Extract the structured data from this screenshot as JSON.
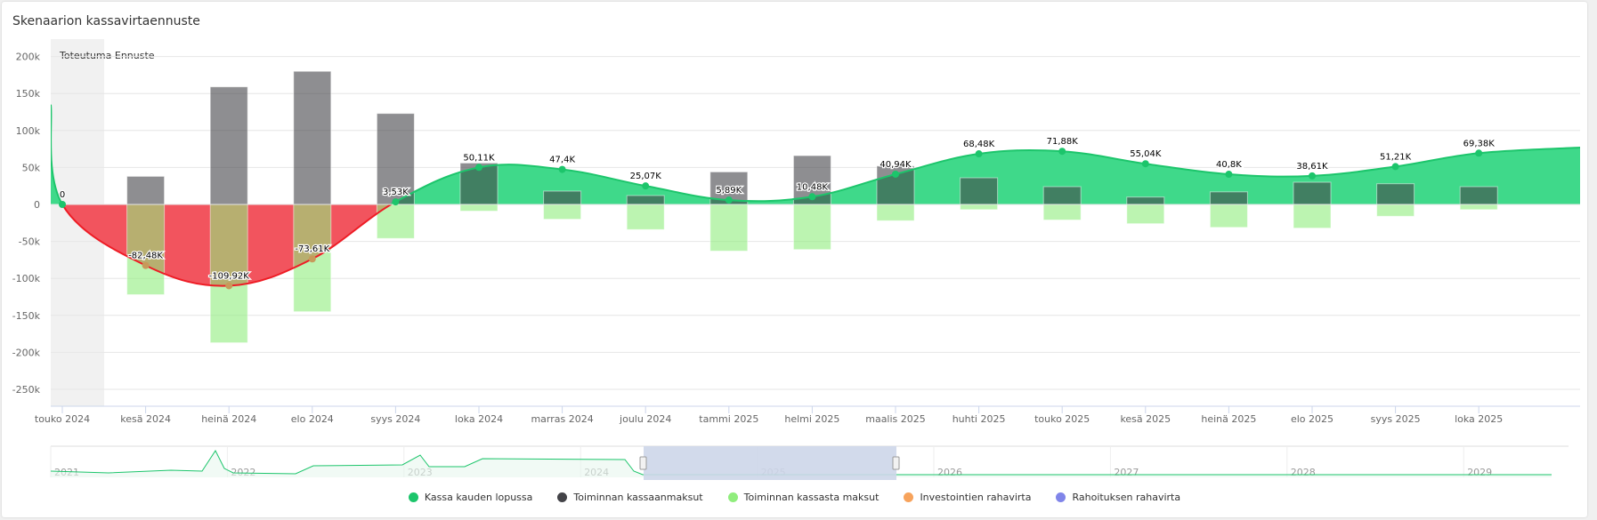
{
  "title": "Skenaarion kassavirtaennuste",
  "colors": {
    "cash": "#1cc56b",
    "cash_fill": "#3fd98a",
    "negative_fill": "#f2545e",
    "negative_line": "#ee1c25",
    "inflow": "#8a8a8b",
    "outflow": "#bcf4ad",
    "investing": "#f4a35c",
    "financing": "#7f7fe8",
    "actual_band": "#f1f1f1",
    "navigator_mask": "#cdd6e9"
  },
  "chart_data": {
    "type": "bar+area",
    "title": "Skenaarion kassavirtaennuste",
    "xlabel": "",
    "ylabel": "",
    "ylim": [
      -275000,
      215000
    ],
    "yticks": [
      200000,
      150000,
      100000,
      50000,
      0,
      -50000,
      -100000,
      -150000,
      -200000,
      -250000
    ],
    "ytick_labels": [
      "200k",
      "150k",
      "100k",
      "50k",
      "0",
      "-50k",
      "-100k",
      "-150k",
      "-200k",
      "-250k"
    ],
    "grid": true,
    "legend_position": "bottom",
    "band_labels": [
      "Toteutuma",
      "Ennuste"
    ],
    "categories": [
      "touko 2024",
      "kesä 2024",
      "heinä 2024",
      "elo 2024",
      "syys 2024",
      "loka 2024",
      "marras 2024",
      "joulu 2024",
      "tammi 2025",
      "helmi 2025",
      "maalis 2025",
      "huhti 2025",
      "touko 2025",
      "kesä 2025",
      "heinä 2025",
      "elo 2025",
      "syys 2025",
      "loka 2025"
    ],
    "series": [
      {
        "name": "Kassa kauden lopussa",
        "type": "area",
        "values": [
          0,
          -82480,
          -109920,
          -73610,
          3530,
          50110,
          47400,
          25070,
          5890,
          10480,
          40940,
          68480,
          71880,
          55040,
          40800,
          38610,
          51210,
          69380
        ],
        "labels": [
          "0",
          "-82,48K",
          "-109,92K",
          "-73,61K",
          "3,53K",
          "50,11K",
          "47,4K",
          "25,07K",
          "5,89K",
          "10,48K",
          "40,94K",
          "68,48K",
          "71,88K",
          "55,04K",
          "40,8K",
          "38,61K",
          "51,21K",
          "69,38K"
        ],
        "start_value": 135000,
        "end_value": 77000
      },
      {
        "name": "Toiminnan kassaanmaksut",
        "type": "bar",
        "values": [
          0,
          38000,
          159000,
          180000,
          123000,
          56000,
          18000,
          12000,
          44000,
          66000,
          52000,
          36000,
          24000,
          10000,
          17000,
          30000,
          28000,
          24000
        ]
      },
      {
        "name": "Toiminnan kassasta maksut",
        "type": "bar",
        "values": [
          0,
          -122000,
          -187000,
          -145000,
          -46000,
          -9000,
          -20000,
          -34000,
          -63000,
          -61000,
          -22000,
          -7000,
          -21000,
          -26000,
          -31000,
          -32000,
          -16000,
          -7000
        ]
      },
      {
        "name": "Investointien rahavirta",
        "type": "bar",
        "values": []
      },
      {
        "name": "Rahoituksen rahavirta",
        "type": "bar",
        "values": []
      }
    ]
  },
  "navigator": {
    "year_labels": [
      "2021",
      "2022",
      "2023",
      "2024",
      "2025",
      "2026",
      "2027",
      "2028",
      "2029"
    ],
    "selection": {
      "from": "touko 2024",
      "to": "loka 2025"
    }
  },
  "legend": [
    {
      "label": "Kassa kauden lopussa",
      "color": "#1cc56b"
    },
    {
      "label": "Toiminnan kassaanmaksut",
      "color": "#434348"
    },
    {
      "label": "Toiminnan kassasta maksut",
      "color": "#90ed7d"
    },
    {
      "label": "Investointien rahavirta",
      "color": "#f7a35c"
    },
    {
      "label": "Rahoituksen rahavirta",
      "color": "#8085e9"
    }
  ]
}
